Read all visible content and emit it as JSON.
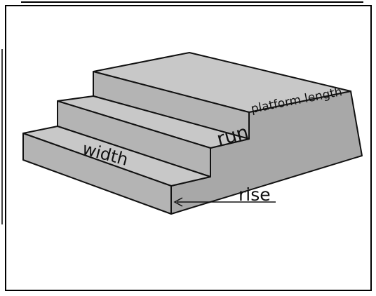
{
  "diagram": {
    "labels": {
      "platform": "platform length",
      "run": "run",
      "width": "width",
      "rise": "rise"
    },
    "colors": {
      "background": "#ffffff",
      "frame": "#000000",
      "top_face": "#c8c8c8",
      "side_face": "#a8a8a8",
      "front_face": "#b4b4b4",
      "edge": "#111111"
    }
  }
}
